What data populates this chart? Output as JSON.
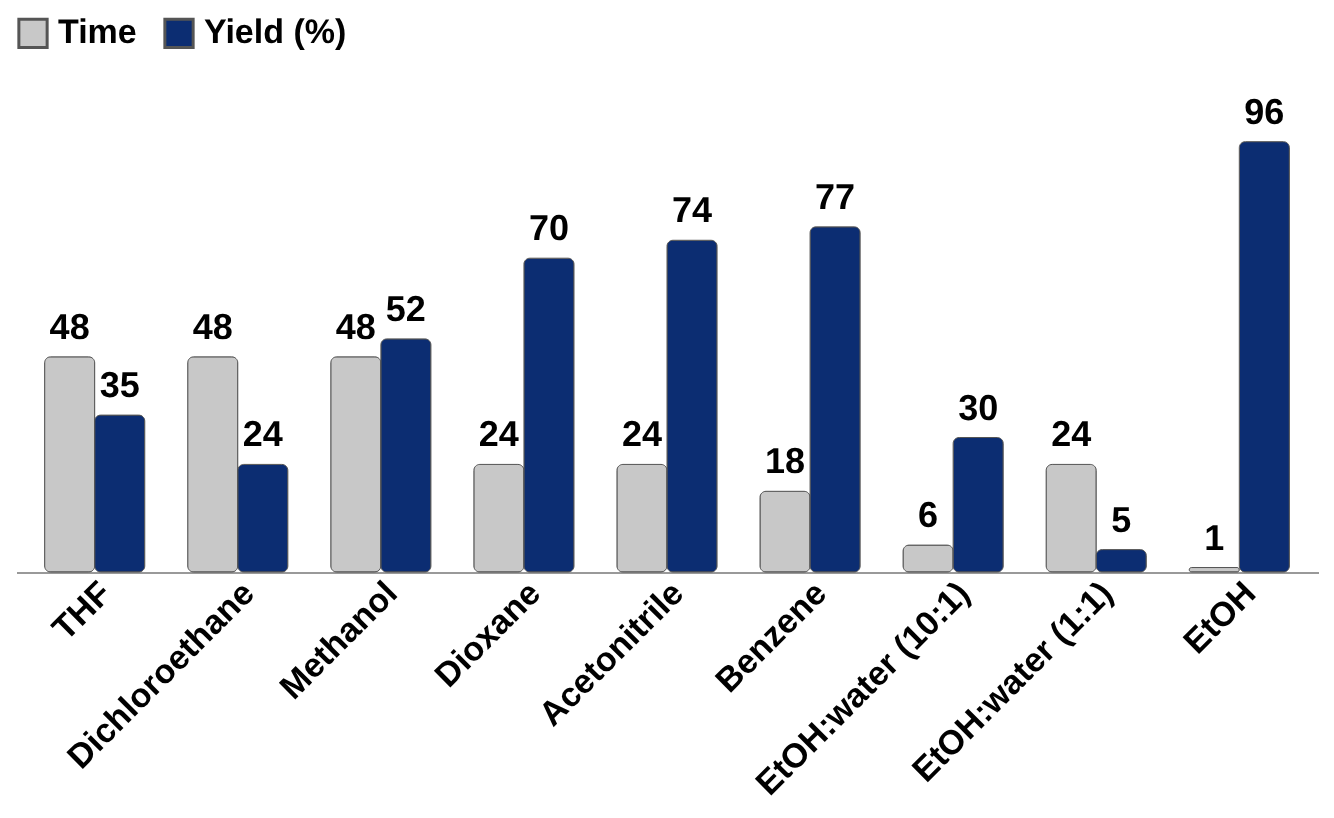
{
  "chart_data": {
    "type": "bar",
    "categories": [
      "THF",
      "Dichloroethane",
      "Methanol",
      "Dioxane",
      "Acetonitrile",
      "Benzene",
      "EtOH:water (10:1)",
      "EtOH:water (1:1)",
      "EtOH"
    ],
    "series": [
      {
        "name": "Time",
        "color": "#c8c8c8",
        "values": [
          48,
          48,
          48,
          24,
          24,
          18,
          6,
          24,
          1
        ]
      },
      {
        "name": "Yield (%)",
        "color": "#0c2d72",
        "values": [
          35,
          24,
          52,
          70,
          74,
          77,
          30,
          5,
          96
        ]
      }
    ],
    "data_labels": true,
    "legend": "top",
    "grid": false
  }
}
